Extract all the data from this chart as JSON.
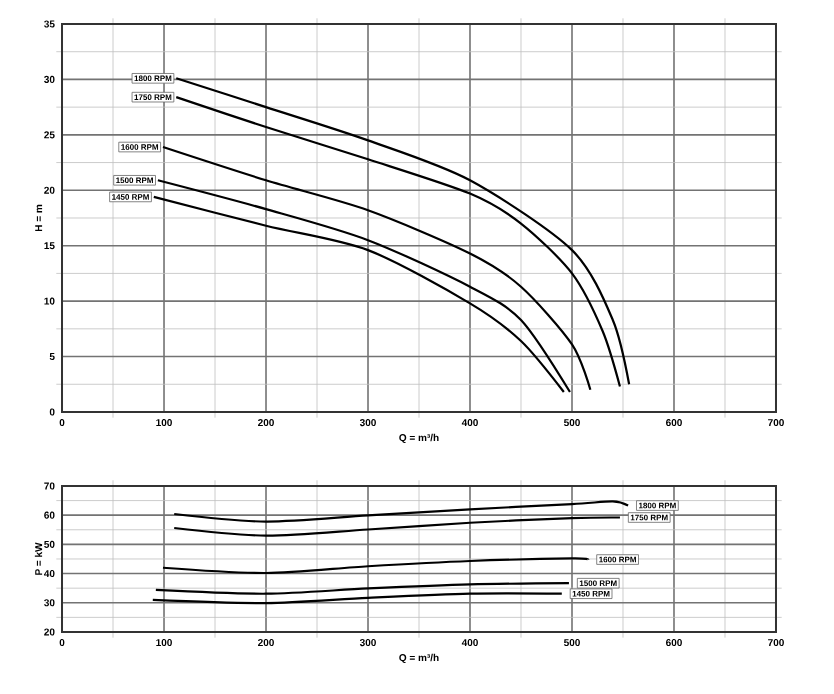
{
  "chart_data": [
    {
      "type": "line",
      "xlabel": "Q = m³/h",
      "ylabel": "H = m",
      "xlim": [
        0,
        700
      ],
      "ylim": [
        0,
        35
      ],
      "xticks": [
        0,
        100,
        200,
        300,
        400,
        500,
        600,
        700
      ],
      "yticks": [
        0,
        5,
        10,
        15,
        20,
        25,
        30,
        35
      ],
      "grid": true,
      "legend": false,
      "marker": "none",
      "line_style": "solid",
      "series": [
        {
          "name": "1800 RPM",
          "color": "#000000",
          "x": [
            112,
            200,
            300,
            400,
            500,
            540,
            556
          ],
          "values": [
            30.1,
            27.5,
            24.5,
            20.9,
            14.6,
            8.3,
            2.5
          ]
        },
        {
          "name": "1750 RPM",
          "color": "#000000",
          "x": [
            112,
            200,
            300,
            400,
            450,
            500,
            530,
            547
          ],
          "values": [
            28.4,
            25.7,
            22.8,
            19.7,
            17.0,
            12.5,
            7.3,
            2.3
          ]
        },
        {
          "name": "1600 RPM",
          "color": "#000000",
          "x": [
            99,
            200,
            300,
            400,
            450,
            500,
            518
          ],
          "values": [
            23.9,
            20.9,
            18.2,
            14.3,
            11.3,
            6.1,
            2.0
          ]
        },
        {
          "name": "1500 RPM",
          "color": "#000000",
          "x": [
            94,
            200,
            300,
            400,
            450,
            498
          ],
          "values": [
            20.9,
            18.3,
            15.5,
            11.3,
            8.3,
            1.8
          ]
        },
        {
          "name": "1450 RPM",
          "color": "#000000",
          "x": [
            90,
            200,
            300,
            400,
            450,
            492
          ],
          "values": [
            19.4,
            16.8,
            14.6,
            9.8,
            6.4,
            1.8
          ]
        }
      ]
    },
    {
      "type": "line",
      "xlabel": "Q = m³/h",
      "ylabel": "P = kW",
      "xlim": [
        0,
        700
      ],
      "ylim": [
        20,
        70
      ],
      "xticks": [
        0,
        100,
        200,
        300,
        400,
        500,
        600,
        700
      ],
      "yticks": [
        20,
        30,
        40,
        50,
        60,
        70
      ],
      "grid": true,
      "legend": false,
      "marker": "none",
      "line_style": "solid",
      "series": [
        {
          "name": "1800 RPM",
          "color": "#000000",
          "x": [
            110,
            200,
            300,
            400,
            500,
            540,
            555
          ],
          "values": [
            60.4,
            57.8,
            59.9,
            62.0,
            63.8,
            64.7,
            63.3
          ]
        },
        {
          "name": "1750 RPM",
          "color": "#000000",
          "x": [
            110,
            200,
            300,
            400,
            500,
            547
          ],
          "values": [
            55.6,
            53.0,
            55.1,
            57.4,
            59.0,
            59.2
          ]
        },
        {
          "name": "1600 RPM",
          "color": "#000000",
          "x": [
            99,
            200,
            300,
            400,
            500,
            516
          ],
          "values": [
            42.0,
            40.2,
            42.5,
            44.3,
            45.2,
            44.8
          ]
        },
        {
          "name": "1500 RPM",
          "color": "#000000",
          "x": [
            92,
            200,
            300,
            400,
            497
          ],
          "values": [
            34.4,
            33.1,
            34.9,
            36.3,
            36.7
          ]
        },
        {
          "name": "1450 RPM",
          "color": "#000000",
          "x": [
            89,
            200,
            300,
            400,
            490
          ],
          "values": [
            31.0,
            29.9,
            31.7,
            33.1,
            33.1
          ]
        }
      ]
    }
  ]
}
